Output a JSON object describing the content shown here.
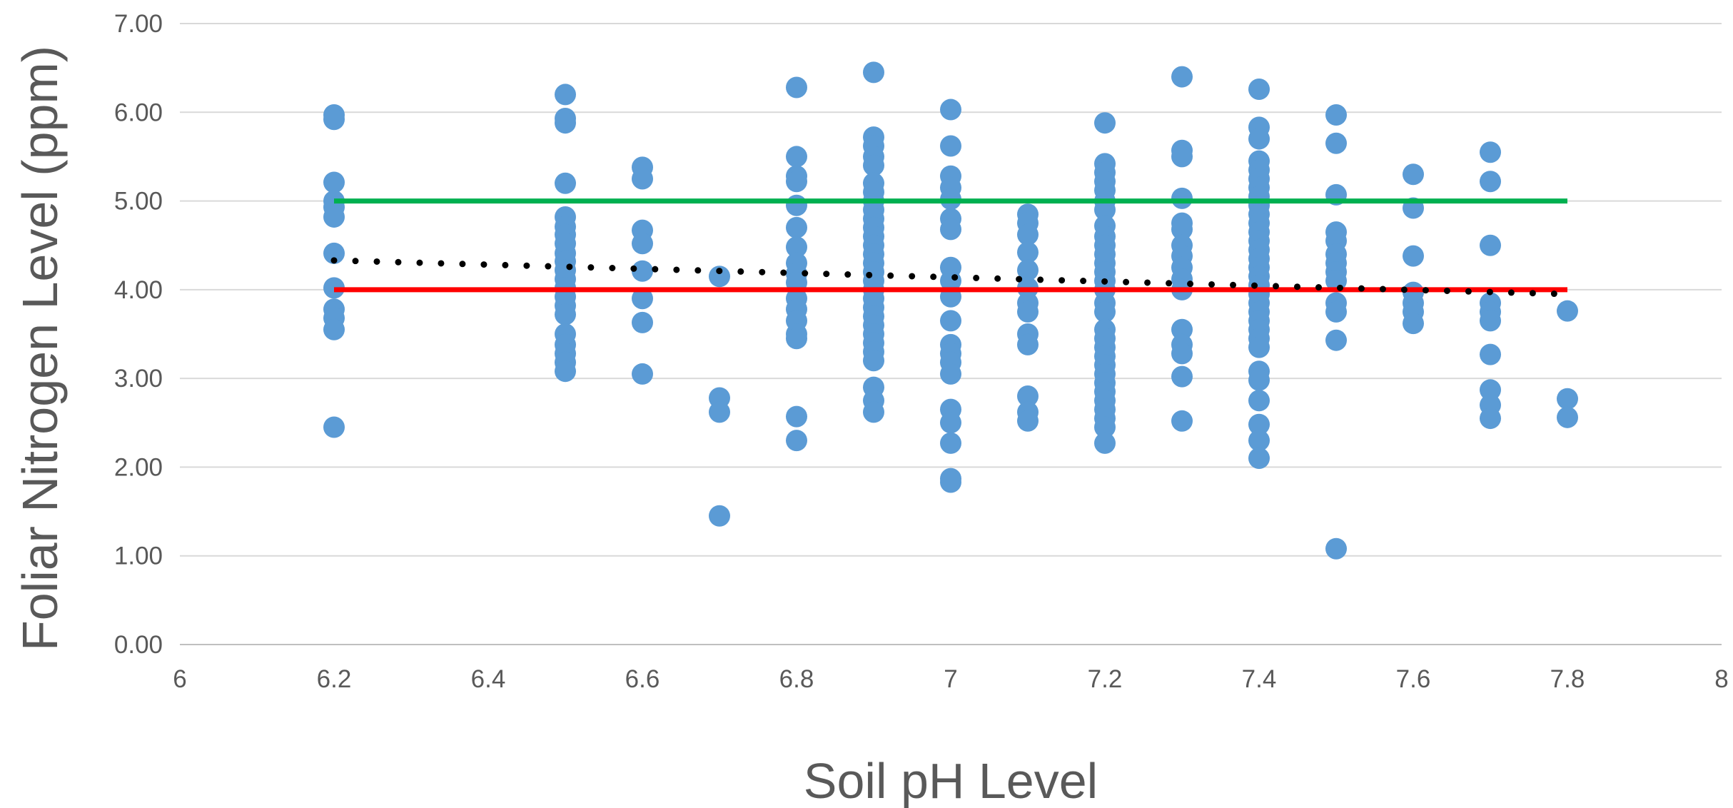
{
  "chart_data": {
    "type": "scatter",
    "title": "",
    "xlabel": "Soil pH Level",
    "ylabel": "Foliar Nitrogen Level (ppm)",
    "xlim": [
      6,
      8
    ],
    "ylim": [
      0,
      7
    ],
    "x_ticks": [
      6,
      6.2,
      6.4,
      6.6,
      6.8,
      7,
      7.2,
      7.4,
      7.6,
      7.8,
      8
    ],
    "x_tick_labels": [
      "6",
      "6.2",
      "6.4",
      "6.6",
      "6.8",
      "7",
      "7.2",
      "7.4",
      "7.6",
      "7.8",
      "8"
    ],
    "y_ticks": [
      0,
      1,
      2,
      3,
      4,
      5,
      6,
      7
    ],
    "y_tick_labels": [
      "0.00",
      "1.00",
      "2.00",
      "3.00",
      "4.00",
      "5.00",
      "6.00",
      "7.00"
    ],
    "grid": {
      "horizontal": true,
      "vertical": false
    },
    "legend": "none",
    "colors": {
      "points": "#5b9bd5",
      "upper_line": "#00b050",
      "lower_line": "#ff0000",
      "trendline": "#000000",
      "grid": "#d9d9d9",
      "axis": "#bfbfbf",
      "text": "#595959"
    },
    "series": [
      {
        "type": "scatter",
        "points": [
          [
            6.2,
            5.97
          ],
          [
            6.2,
            5.92
          ],
          [
            6.2,
            5.21
          ],
          [
            6.2,
            5.0
          ],
          [
            6.2,
            4.93
          ],
          [
            6.2,
            4.82
          ],
          [
            6.2,
            4.41
          ],
          [
            6.2,
            4.02
          ],
          [
            6.2,
            3.78
          ],
          [
            6.2,
            3.68
          ],
          [
            6.2,
            3.55
          ],
          [
            6.2,
            2.45
          ],
          [
            6.5,
            6.2
          ],
          [
            6.5,
            5.93
          ],
          [
            6.5,
            5.88
          ],
          [
            6.5,
            5.2
          ],
          [
            6.5,
            4.82
          ],
          [
            6.5,
            4.71
          ],
          [
            6.5,
            4.62
          ],
          [
            6.5,
            4.52
          ],
          [
            6.5,
            4.41
          ],
          [
            6.5,
            4.32
          ],
          [
            6.5,
            4.22
          ],
          [
            6.5,
            4.12
          ],
          [
            6.5,
            4.02
          ],
          [
            6.5,
            3.92
          ],
          [
            6.5,
            3.82
          ],
          [
            6.5,
            3.72
          ],
          [
            6.5,
            3.5
          ],
          [
            6.5,
            3.38
          ],
          [
            6.5,
            3.28
          ],
          [
            6.5,
            3.18
          ],
          [
            6.5,
            3.08
          ],
          [
            6.6,
            5.38
          ],
          [
            6.6,
            5.25
          ],
          [
            6.6,
            4.67
          ],
          [
            6.6,
            4.52
          ],
          [
            6.6,
            4.21
          ],
          [
            6.6,
            3.9
          ],
          [
            6.6,
            3.63
          ],
          [
            6.6,
            3.05
          ],
          [
            6.7,
            4.15
          ],
          [
            6.7,
            2.78
          ],
          [
            6.7,
            2.62
          ],
          [
            6.7,
            1.45
          ],
          [
            6.8,
            6.28
          ],
          [
            6.8,
            5.5
          ],
          [
            6.8,
            5.28
          ],
          [
            6.8,
            5.22
          ],
          [
            6.8,
            4.95
          ],
          [
            6.8,
            4.7
          ],
          [
            6.8,
            4.48
          ],
          [
            6.8,
            4.3
          ],
          [
            6.8,
            4.18
          ],
          [
            6.8,
            4.08
          ],
          [
            6.8,
            3.9
          ],
          [
            6.8,
            3.78
          ],
          [
            6.8,
            3.65
          ],
          [
            6.8,
            3.5
          ],
          [
            6.8,
            3.45
          ],
          [
            6.8,
            2.57
          ],
          [
            6.8,
            2.3
          ],
          [
            6.9,
            6.45
          ],
          [
            6.9,
            5.72
          ],
          [
            6.9,
            5.62
          ],
          [
            6.9,
            5.5
          ],
          [
            6.9,
            5.4
          ],
          [
            6.9,
            5.2
          ],
          [
            6.9,
            5.1
          ],
          [
            6.9,
            5.0
          ],
          [
            6.9,
            4.9
          ],
          [
            6.9,
            4.8
          ],
          [
            6.9,
            4.7
          ],
          [
            6.9,
            4.6
          ],
          [
            6.9,
            4.5
          ],
          [
            6.9,
            4.4
          ],
          [
            6.9,
            4.3
          ],
          [
            6.9,
            4.2
          ],
          [
            6.9,
            4.1
          ],
          [
            6.9,
            4.0
          ],
          [
            6.9,
            3.9
          ],
          [
            6.9,
            3.8
          ],
          [
            6.9,
            3.7
          ],
          [
            6.9,
            3.6
          ],
          [
            6.9,
            3.5
          ],
          [
            6.9,
            3.4
          ],
          [
            6.9,
            3.3
          ],
          [
            6.9,
            3.2
          ],
          [
            6.9,
            2.9
          ],
          [
            6.9,
            2.75
          ],
          [
            6.9,
            2.62
          ],
          [
            7.0,
            6.03
          ],
          [
            7.0,
            5.62
          ],
          [
            7.0,
            5.28
          ],
          [
            7.0,
            5.15
          ],
          [
            7.0,
            5.02
          ],
          [
            7.0,
            4.8
          ],
          [
            7.0,
            4.68
          ],
          [
            7.0,
            4.25
          ],
          [
            7.0,
            4.1
          ],
          [
            7.0,
            3.92
          ],
          [
            7.0,
            3.65
          ],
          [
            7.0,
            3.38
          ],
          [
            7.0,
            3.28
          ],
          [
            7.0,
            3.18
          ],
          [
            7.0,
            3.05
          ],
          [
            7.0,
            2.65
          ],
          [
            7.0,
            2.5
          ],
          [
            7.0,
            2.27
          ],
          [
            7.0,
            1.87
          ],
          [
            7.0,
            1.83
          ],
          [
            7.1,
            4.85
          ],
          [
            7.1,
            4.75
          ],
          [
            7.1,
            4.62
          ],
          [
            7.1,
            4.42
          ],
          [
            7.1,
            4.22
          ],
          [
            7.1,
            4.02
          ],
          [
            7.1,
            3.85
          ],
          [
            7.1,
            3.75
          ],
          [
            7.1,
            3.5
          ],
          [
            7.1,
            3.38
          ],
          [
            7.1,
            2.8
          ],
          [
            7.1,
            2.62
          ],
          [
            7.1,
            2.52
          ],
          [
            7.2,
            5.88
          ],
          [
            7.2,
            5.42
          ],
          [
            7.2,
            5.32
          ],
          [
            7.2,
            5.22
          ],
          [
            7.2,
            5.12
          ],
          [
            7.2,
            5.0
          ],
          [
            7.2,
            4.9
          ],
          [
            7.2,
            4.72
          ],
          [
            7.2,
            4.6
          ],
          [
            7.2,
            4.5
          ],
          [
            7.2,
            4.4
          ],
          [
            7.2,
            4.3
          ],
          [
            7.2,
            4.2
          ],
          [
            7.2,
            4.1
          ],
          [
            7.2,
            4.0
          ],
          [
            7.2,
            3.85
          ],
          [
            7.2,
            3.75
          ],
          [
            7.2,
            3.55
          ],
          [
            7.2,
            3.45
          ],
          [
            7.2,
            3.35
          ],
          [
            7.2,
            3.25
          ],
          [
            7.2,
            3.15
          ],
          [
            7.2,
            3.05
          ],
          [
            7.2,
            2.95
          ],
          [
            7.2,
            2.85
          ],
          [
            7.2,
            2.75
          ],
          [
            7.2,
            2.65
          ],
          [
            7.2,
            2.55
          ],
          [
            7.2,
            2.45
          ],
          [
            7.2,
            2.27
          ],
          [
            7.3,
            6.4
          ],
          [
            7.3,
            5.57
          ],
          [
            7.3,
            5.5
          ],
          [
            7.3,
            5.03
          ],
          [
            7.3,
            4.75
          ],
          [
            7.3,
            4.68
          ],
          [
            7.3,
            4.5
          ],
          [
            7.3,
            4.38
          ],
          [
            7.3,
            4.25
          ],
          [
            7.3,
            4.12
          ],
          [
            7.3,
            4.0
          ],
          [
            7.3,
            3.55
          ],
          [
            7.3,
            3.38
          ],
          [
            7.3,
            3.28
          ],
          [
            7.3,
            3.02
          ],
          [
            7.3,
            2.52
          ],
          [
            7.4,
            6.26
          ],
          [
            7.4,
            5.83
          ],
          [
            7.4,
            5.7
          ],
          [
            7.4,
            5.45
          ],
          [
            7.4,
            5.35
          ],
          [
            7.4,
            5.25
          ],
          [
            7.4,
            5.15
          ],
          [
            7.4,
            5.05
          ],
          [
            7.4,
            4.95
          ],
          [
            7.4,
            4.85
          ],
          [
            7.4,
            4.75
          ],
          [
            7.4,
            4.65
          ],
          [
            7.4,
            4.55
          ],
          [
            7.4,
            4.45
          ],
          [
            7.4,
            4.35
          ],
          [
            7.4,
            4.25
          ],
          [
            7.4,
            4.15
          ],
          [
            7.4,
            4.05
          ],
          [
            7.4,
            3.95
          ],
          [
            7.4,
            3.85
          ],
          [
            7.4,
            3.75
          ],
          [
            7.4,
            3.65
          ],
          [
            7.4,
            3.55
          ],
          [
            7.4,
            3.45
          ],
          [
            7.4,
            3.35
          ],
          [
            7.4,
            3.08
          ],
          [
            7.4,
            2.98
          ],
          [
            7.4,
            2.75
          ],
          [
            7.4,
            2.48
          ],
          [
            7.4,
            2.3
          ],
          [
            7.4,
            2.1
          ],
          [
            7.5,
            5.97
          ],
          [
            7.5,
            5.65
          ],
          [
            7.5,
            5.07
          ],
          [
            7.5,
            4.65
          ],
          [
            7.5,
            4.55
          ],
          [
            7.5,
            4.4
          ],
          [
            7.5,
            4.3
          ],
          [
            7.5,
            4.2
          ],
          [
            7.5,
            4.1
          ],
          [
            7.5,
            3.85
          ],
          [
            7.5,
            3.75
          ],
          [
            7.5,
            3.43
          ],
          [
            7.5,
            1.08
          ],
          [
            7.6,
            5.3
          ],
          [
            7.6,
            4.92
          ],
          [
            7.6,
            4.38
          ],
          [
            7.6,
            3.97
          ],
          [
            7.6,
            3.85
          ],
          [
            7.6,
            3.75
          ],
          [
            7.6,
            3.62
          ],
          [
            7.7,
            5.55
          ],
          [
            7.7,
            5.22
          ],
          [
            7.7,
            4.5
          ],
          [
            7.7,
            3.85
          ],
          [
            7.7,
            3.75
          ],
          [
            7.7,
            3.65
          ],
          [
            7.7,
            3.27
          ],
          [
            7.7,
            2.87
          ],
          [
            7.7,
            2.7
          ],
          [
            7.7,
            2.55
          ],
          [
            7.8,
            3.76
          ],
          [
            7.8,
            2.77
          ],
          [
            7.8,
            2.56
          ]
        ]
      },
      {
        "type": "line",
        "style": "solid",
        "points": [
          [
            6.2,
            5.0
          ],
          [
            7.8,
            5.0
          ]
        ]
      },
      {
        "type": "line",
        "style": "solid",
        "points": [
          [
            6.2,
            4.0
          ],
          [
            7.8,
            4.0
          ]
        ]
      },
      {
        "type": "line",
        "style": "dotted",
        "points": [
          [
            6.2,
            4.33
          ],
          [
            7.8,
            3.95
          ]
        ]
      }
    ]
  }
}
